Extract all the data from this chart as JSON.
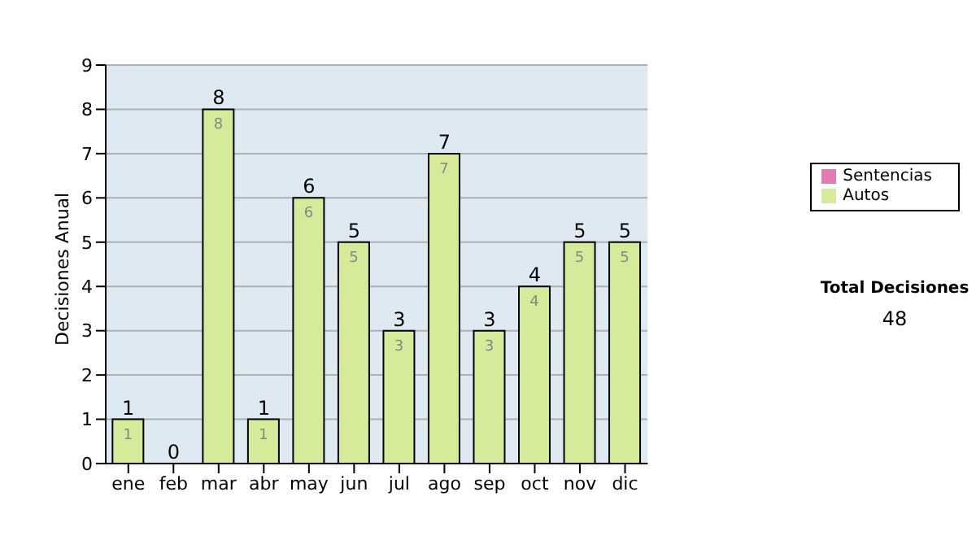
{
  "chart_data": {
    "type": "bar",
    "ylabel": "Decisiones Anual",
    "categories": [
      "ene",
      "feb",
      "mar",
      "abr",
      "may",
      "jun",
      "jul",
      "ago",
      "sep",
      "oct",
      "nov",
      "dic"
    ],
    "stacked": true,
    "series": [
      {
        "name": "Sentencias",
        "color": "#e07bb4",
        "values": [
          0,
          0,
          0,
          0,
          0,
          0,
          0,
          0,
          0,
          0,
          0,
          0
        ]
      },
      {
        "name": "Autos",
        "color": "#d6eb9a",
        "values": [
          1,
          0,
          8,
          1,
          6,
          5,
          3,
          7,
          3,
          4,
          5,
          5
        ],
        "value_labels": [
          "1",
          null,
          "8",
          "1",
          "6",
          "5",
          "3",
          "7",
          "3",
          "4",
          "5",
          "5"
        ]
      }
    ],
    "totals": [
      "1",
      "0",
      "8",
      "1",
      "6",
      "5",
      "3",
      "7",
      "3",
      "4",
      "5",
      "5"
    ],
    "ylim": [
      0,
      9
    ],
    "yticks": [
      0,
      1,
      2,
      3,
      4,
      5,
      6,
      7,
      8,
      9
    ],
    "grid": "y",
    "legend": "right",
    "annotations": [
      "Total Decisiones",
      "48"
    ]
  }
}
